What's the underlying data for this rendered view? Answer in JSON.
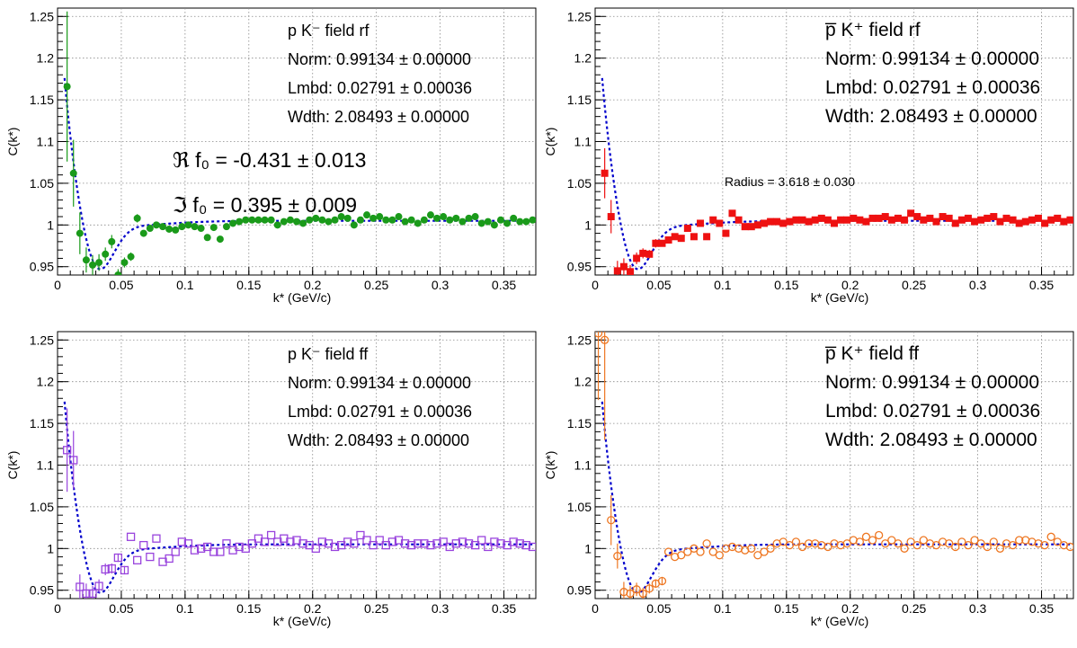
{
  "axis_labels": {
    "x": "k* (GeV/c)",
    "y": "C(k*)"
  },
  "chart_data": [
    {
      "type": "scatter",
      "panel": "top-left",
      "title": "p K⁻ field rf",
      "xlabel": "k* (GeV/c)",
      "ylabel": "C(k*)",
      "xlim": [
        0,
        0.375
      ],
      "ylim": [
        0.94,
        1.26
      ],
      "grid": true,
      "xticks": [
        "0",
        "0.05",
        "0.1",
        "0.15",
        "0.2",
        "0.25",
        "0.3",
        "0.35"
      ],
      "yticks": [
        "0.95",
        "1",
        "1.05",
        "1.1",
        "1.15",
        "1.2",
        "1.25"
      ],
      "annotations": [
        "Norm: 0.99134 ± 0.00000",
        "Lmbd: 0.02791 ± 0.00036",
        "Wdth: 2.08493 ± 0.00000"
      ],
      "extra_annotations": [
        "ℜ f₀ = -0.431 ± 0.013",
        "ℑ f₀ = 0.395 ± 0.009"
      ],
      "marker": "filled-circle",
      "color": "#1a9a1a",
      "fit_color": "#0000cc",
      "x": [
        0.0075,
        0.0125,
        0.0175,
        0.0225,
        0.0275,
        0.0325,
        0.0375,
        0.0425,
        0.0475,
        0.0525,
        0.0575,
        0.0625,
        0.0675,
        0.0725,
        0.0775,
        0.0825,
        0.0875,
        0.0925,
        0.0975,
        0.1025,
        0.1075,
        0.1125,
        0.1175,
        0.1225,
        0.1275,
        0.1325,
        0.1375,
        0.1425,
        0.1475,
        0.1525,
        0.1575,
        0.1625,
        0.1675,
        0.1725,
        0.1775,
        0.1825,
        0.1875,
        0.1925,
        0.1975,
        0.2025,
        0.2075,
        0.2125,
        0.2175,
        0.2225,
        0.2275,
        0.2325,
        0.2375,
        0.2425,
        0.2475,
        0.2525,
        0.2575,
        0.2625,
        0.2675,
        0.2725,
        0.2775,
        0.2825,
        0.2875,
        0.2925,
        0.2975,
        0.3025,
        0.3075,
        0.3125,
        0.3175,
        0.3225,
        0.3275,
        0.3325,
        0.3375,
        0.3425,
        0.3475,
        0.3525,
        0.3575,
        0.3625,
        0.3675,
        0.3725
      ],
      "y": [
        1.166,
        1.062,
        0.99,
        0.958,
        0.952,
        0.955,
        0.965,
        0.98,
        0.94,
        0.955,
        0.962,
        1.008,
        0.99,
        0.996,
        1.0,
        0.998,
        0.995,
        0.994,
        0.998,
        1.0,
        0.998,
        0.996,
        0.985,
        0.997,
        0.983,
        0.998,
        1.002,
        1.004,
        1.006,
        1.006,
        1.006,
        1.006,
        1.006,
        1.0,
        1.004,
        1.006,
        1.004,
        1.002,
        1.006,
        1.008,
        1.006,
        1.004,
        1.006,
        1.01,
        1.008,
        1.0,
        1.006,
        1.012,
        1.008,
        1.01,
        1.006,
        1.006,
        1.01,
        1.004,
        1.006,
        1.002,
        1.006,
        1.012,
        1.008,
        1.01,
        1.006,
        1.008,
        1.004,
        1.008,
        1.01,
        1.002,
        1.004,
        1.0,
        1.006,
        1.002,
        1.008,
        1.004,
        1.004,
        1.006
      ],
      "err": [
        0.09,
        0.04,
        0.025,
        0.015,
        0.012,
        0.01,
        0.008,
        0.008,
        0.007,
        0.006,
        0.005,
        0.005,
        0.004,
        0.004,
        0.004,
        0.003,
        0.003,
        0.003,
        0.003,
        0.003,
        0.003,
        0.003,
        0.003,
        0.003,
        0.003,
        0.003,
        0.003,
        0.003,
        0.003,
        0.003,
        0.003,
        0.003,
        0.003,
        0.003,
        0.003,
        0.003,
        0.003,
        0.003,
        0.003,
        0.003,
        0.003,
        0.003,
        0.003,
        0.003,
        0.003,
        0.003,
        0.003,
        0.003,
        0.003,
        0.003,
        0.003,
        0.003,
        0.003,
        0.003,
        0.003,
        0.003,
        0.003,
        0.003,
        0.003,
        0.003,
        0.003,
        0.003,
        0.003,
        0.003,
        0.003,
        0.003,
        0.003,
        0.003,
        0.003,
        0.003,
        0.003,
        0.003,
        0.003,
        0.003
      ]
    },
    {
      "type": "scatter",
      "panel": "top-right",
      "title": "p̅ K⁺ field rf",
      "xlabel": "k* (GeV/c)",
      "ylabel": "C(k*)",
      "xlim": [
        0,
        0.375
      ],
      "ylim": [
        0.94,
        1.26
      ],
      "grid": true,
      "xticks": [
        "0",
        "0.05",
        "0.1",
        "0.15",
        "0.2",
        "0.25",
        "0.3",
        "0.35"
      ],
      "yticks": [
        "0.95",
        "1",
        "1.05",
        "1.1",
        "1.15",
        "1.2",
        "1.25"
      ],
      "annotations": [
        "Norm: 0.99134 ± 0.00000",
        "Lmbd: 0.02791 ± 0.00036",
        "Wdth: 2.08493 ± 0.00000"
      ],
      "extra_annotations": [
        "Radius = 3.618 ± 0.030"
      ],
      "marker": "filled-square",
      "color": "#ee1111",
      "fit_color": "#0000cc",
      "x": [
        0.0075,
        0.0125,
        0.0175,
        0.0225,
        0.0275,
        0.0325,
        0.0375,
        0.0425,
        0.0475,
        0.0525,
        0.0575,
        0.0625,
        0.0675,
        0.0725,
        0.0775,
        0.0825,
        0.0875,
        0.0925,
        0.0975,
        0.1025,
        0.1075,
        0.1125,
        0.1175,
        0.1225,
        0.1275,
        0.1325,
        0.1375,
        0.1425,
        0.1475,
        0.1525,
        0.1575,
        0.1625,
        0.1675,
        0.1725,
        0.1775,
        0.1825,
        0.1875,
        0.1925,
        0.1975,
        0.2025,
        0.2075,
        0.2125,
        0.2175,
        0.2225,
        0.2275,
        0.2325,
        0.2375,
        0.2425,
        0.2475,
        0.2525,
        0.2575,
        0.2625,
        0.2675,
        0.2725,
        0.2775,
        0.2825,
        0.2875,
        0.2925,
        0.2975,
        0.3025,
        0.3075,
        0.3125,
        0.3175,
        0.3225,
        0.3275,
        0.3325,
        0.3375,
        0.3425,
        0.3475,
        0.3525,
        0.3575,
        0.3625,
        0.3675,
        0.3725
      ],
      "y": [
        1.062,
        1.01,
        0.945,
        0.95,
        0.944,
        0.96,
        0.966,
        0.965,
        0.978,
        0.978,
        0.982,
        0.986,
        0.984,
        0.996,
        0.986,
        1.002,
        0.986,
        1.006,
        1.002,
        0.99,
        1.014,
        1.006,
        0.998,
        0.998,
        1.0,
        1.002,
        1.004,
        1.004,
        1.002,
        1.004,
        1.006,
        1.006,
        1.004,
        1.006,
        1.008,
        1.006,
        1.002,
        1.006,
        1.006,
        1.008,
        1.006,
        1.004,
        1.008,
        1.008,
        1.01,
        1.006,
        1.008,
        1.006,
        1.014,
        1.01,
        1.006,
        1.008,
        1.004,
        1.01,
        1.008,
        1.002,
        1.006,
        1.008,
        1.004,
        1.006,
        1.008,
        1.01,
        1.004,
        1.008,
        1.006,
        1.002,
        1.004,
        1.006,
        1.008,
        1.002,
        1.006,
        1.008,
        1.004,
        1.006
      ],
      "err": [
        0.03,
        0.02,
        0.012,
        0.01,
        0.008,
        0.007,
        0.006,
        0.005,
        0.005,
        0.004,
        0.004,
        0.004,
        0.003,
        0.003,
        0.003,
        0.003,
        0.003,
        0.003,
        0.003,
        0.003,
        0.003,
        0.003,
        0.003,
        0.003,
        0.003,
        0.003,
        0.003,
        0.003,
        0.003,
        0.003,
        0.003,
        0.003,
        0.003,
        0.003,
        0.003,
        0.003,
        0.003,
        0.003,
        0.003,
        0.003,
        0.003,
        0.003,
        0.003,
        0.003,
        0.003,
        0.003,
        0.003,
        0.003,
        0.003,
        0.003,
        0.003,
        0.003,
        0.003,
        0.003,
        0.003,
        0.003,
        0.003,
        0.003,
        0.003,
        0.003,
        0.003,
        0.003,
        0.003,
        0.003,
        0.003,
        0.003,
        0.003,
        0.003,
        0.003,
        0.003,
        0.003,
        0.003,
        0.003,
        0.003
      ]
    },
    {
      "type": "scatter",
      "panel": "bottom-left",
      "title": "p K⁻ field ff",
      "xlabel": "k* (GeV/c)",
      "ylabel": "C(k*)",
      "xlim": [
        0,
        0.375
      ],
      "ylim": [
        0.94,
        1.26
      ],
      "grid": true,
      "xticks": [
        "0",
        "0.05",
        "0.1",
        "0.15",
        "0.2",
        "0.25",
        "0.3",
        "0.35"
      ],
      "yticks": [
        "0.95",
        "1",
        "1.05",
        "1.1",
        "1.15",
        "1.2",
        "1.25"
      ],
      "annotations": [
        "Norm: 0.99134 ± 0.00000",
        "Lmbd: 0.02791 ± 0.00036",
        "Wdth: 2.08493 ± 0.00000"
      ],
      "extra_annotations": [],
      "marker": "open-square",
      "color": "#9944dd",
      "fit_color": "#0000cc",
      "x": [
        0.0075,
        0.0125,
        0.0175,
        0.0225,
        0.0275,
        0.0325,
        0.0375,
        0.0425,
        0.0475,
        0.0525,
        0.0575,
        0.0625,
        0.0675,
        0.0725,
        0.0775,
        0.0825,
        0.0875,
        0.0925,
        0.0975,
        0.1025,
        0.1075,
        0.1125,
        0.1175,
        0.1225,
        0.1275,
        0.1325,
        0.1375,
        0.1425,
        0.1475,
        0.1525,
        0.1575,
        0.1625,
        0.1675,
        0.1725,
        0.1775,
        0.1825,
        0.1875,
        0.1925,
        0.1975,
        0.2025,
        0.2075,
        0.2125,
        0.2175,
        0.2225,
        0.2275,
        0.2325,
        0.2375,
        0.2425,
        0.2475,
        0.2525,
        0.2575,
        0.2625,
        0.2675,
        0.2725,
        0.2775,
        0.2825,
        0.2875,
        0.2925,
        0.2975,
        0.3025,
        0.3075,
        0.3125,
        0.3175,
        0.3225,
        0.3275,
        0.3325,
        0.3375,
        0.3425,
        0.3475,
        0.3525,
        0.3575,
        0.3625,
        0.3675,
        0.3725
      ],
      "y": [
        1.118,
        1.106,
        0.954,
        0.946,
        0.946,
        0.955,
        0.975,
        0.976,
        0.989,
        0.974,
        1.014,
        0.986,
        1.004,
        0.99,
        1.012,
        0.984,
        0.988,
        0.996,
        1.008,
        1.006,
        0.998,
        1.0,
        1.002,
        0.996,
        0.996,
        1.006,
        0.998,
        1.002,
        1.0,
        1.006,
        1.012,
        1.008,
        1.016,
        1.008,
        1.012,
        1.008,
        1.01,
        1.006,
        1.004,
        1.0,
        1.008,
        1.006,
        1.002,
        1.004,
        1.008,
        1.006,
        1.016,
        1.01,
        1.004,
        1.01,
        1.004,
        1.008,
        1.01,
        1.006,
        1.004,
        1.006,
        1.006,
        1.004,
        1.006,
        1.008,
        1.002,
        1.006,
        1.008,
        1.006,
        1.004,
        1.01,
        1.002,
        1.008,
        1.006,
        1.004,
        1.008,
        1.006,
        1.004,
        1.002
      ],
      "err": [
        0.05,
        0.035,
        0.015,
        0.012,
        0.009,
        0.008,
        0.007,
        0.006,
        0.005,
        0.005,
        0.004,
        0.004,
        0.004,
        0.004,
        0.003,
        0.003,
        0.003,
        0.003,
        0.003,
        0.003,
        0.003,
        0.003,
        0.003,
        0.003,
        0.003,
        0.003,
        0.003,
        0.003,
        0.003,
        0.003,
        0.003,
        0.003,
        0.003,
        0.003,
        0.003,
        0.003,
        0.003,
        0.003,
        0.003,
        0.003,
        0.003,
        0.003,
        0.003,
        0.003,
        0.003,
        0.003,
        0.003,
        0.003,
        0.003,
        0.003,
        0.003,
        0.003,
        0.003,
        0.003,
        0.003,
        0.003,
        0.003,
        0.003,
        0.003,
        0.003,
        0.003,
        0.003,
        0.003,
        0.003,
        0.003,
        0.003,
        0.003,
        0.003,
        0.003,
        0.003,
        0.003,
        0.003,
        0.003,
        0.003
      ]
    },
    {
      "type": "scatter",
      "panel": "bottom-right",
      "title": "p̅ K⁺ field ff",
      "xlabel": "k* (GeV/c)",
      "ylabel": "C(k*)",
      "xlim": [
        0,
        0.375
      ],
      "ylim": [
        0.94,
        1.26
      ],
      "grid": true,
      "xticks": [
        "0",
        "0.05",
        "0.1",
        "0.15",
        "0.2",
        "0.25",
        "0.3",
        "0.35"
      ],
      "yticks": [
        "0.95",
        "1",
        "1.05",
        "1.1",
        "1.15",
        "1.2",
        "1.25"
      ],
      "annotations": [
        "Norm: 0.99134 ± 0.00000",
        "Lmbd: 0.02791 ± 0.00036",
        "Wdth: 2.08493 ± 0.00000"
      ],
      "extra_annotations": [],
      "marker": "open-circle",
      "color": "#ee7722",
      "fit_color": "#0000cc",
      "x": [
        0.0025,
        0.0075,
        0.0125,
        0.0175,
        0.0225,
        0.0275,
        0.0325,
        0.0375,
        0.0425,
        0.0475,
        0.0525,
        0.0575,
        0.0625,
        0.0675,
        0.0725,
        0.0775,
        0.0825,
        0.0875,
        0.0925,
        0.0975,
        0.1025,
        0.1075,
        0.1125,
        0.1175,
        0.1225,
        0.1275,
        0.1325,
        0.1375,
        0.1425,
        0.1475,
        0.1525,
        0.1575,
        0.1625,
        0.1675,
        0.1725,
        0.1775,
        0.1825,
        0.1875,
        0.1925,
        0.1975,
        0.2025,
        0.2075,
        0.2125,
        0.2175,
        0.2225,
        0.2275,
        0.2325,
        0.2375,
        0.2425,
        0.2475,
        0.2525,
        0.2575,
        0.2625,
        0.2675,
        0.2725,
        0.2775,
        0.2825,
        0.2875,
        0.2925,
        0.2975,
        0.3025,
        0.3075,
        0.3125,
        0.3175,
        0.3225,
        0.3275,
        0.3325,
        0.3375,
        0.3425,
        0.3475,
        0.3525,
        0.3575,
        0.3625,
        0.3675,
        0.3725
      ],
      "y": [
        1.258,
        1.25,
        1.034,
        0.991,
        0.948,
        0.946,
        0.951,
        0.946,
        0.952,
        0.958,
        0.961,
        0.996,
        0.99,
        0.992,
        0.996,
        1.0,
        0.996,
        1.006,
        0.996,
        0.992,
        1.0,
        1.002,
        1.0,
        0.998,
        1.0,
        0.992,
        0.996,
        1.0,
        1.006,
        1.008,
        1.004,
        1.008,
        1.002,
        1.006,
        1.006,
        1.004,
        1.002,
        1.006,
        1.004,
        1.006,
        1.01,
        1.008,
        1.014,
        1.01,
        1.016,
        1.006,
        1.01,
        1.006,
        1.0,
        1.008,
        1.004,
        1.01,
        1.006,
        1.004,
        1.008,
        1.006,
        1.002,
        1.008,
        1.004,
        1.01,
        1.006,
        1.002,
        1.008,
        1.0,
        1.006,
        1.004,
        1.01,
        1.01,
        1.008,
        1.006,
        1.004,
        1.014,
        1.008,
        1.004,
        1.002
      ],
      "err": [
        0.08,
        0.12,
        0.03,
        0.015,
        0.012,
        0.009,
        0.008,
        0.007,
        0.006,
        0.005,
        0.005,
        0.004,
        0.004,
        0.004,
        0.003,
        0.003,
        0.003,
        0.003,
        0.003,
        0.003,
        0.003,
        0.003,
        0.003,
        0.003,
        0.003,
        0.003,
        0.003,
        0.003,
        0.003,
        0.003,
        0.003,
        0.003,
        0.003,
        0.003,
        0.003,
        0.003,
        0.003,
        0.003,
        0.003,
        0.003,
        0.003,
        0.003,
        0.003,
        0.003,
        0.003,
        0.003,
        0.003,
        0.003,
        0.003,
        0.003,
        0.003,
        0.003,
        0.003,
        0.003,
        0.003,
        0.003,
        0.003,
        0.003,
        0.003,
        0.003,
        0.003,
        0.003,
        0.003,
        0.003,
        0.003,
        0.003,
        0.003,
        0.003,
        0.003,
        0.003,
        0.003,
        0.003,
        0.003,
        0.003,
        0.003
      ]
    }
  ]
}
